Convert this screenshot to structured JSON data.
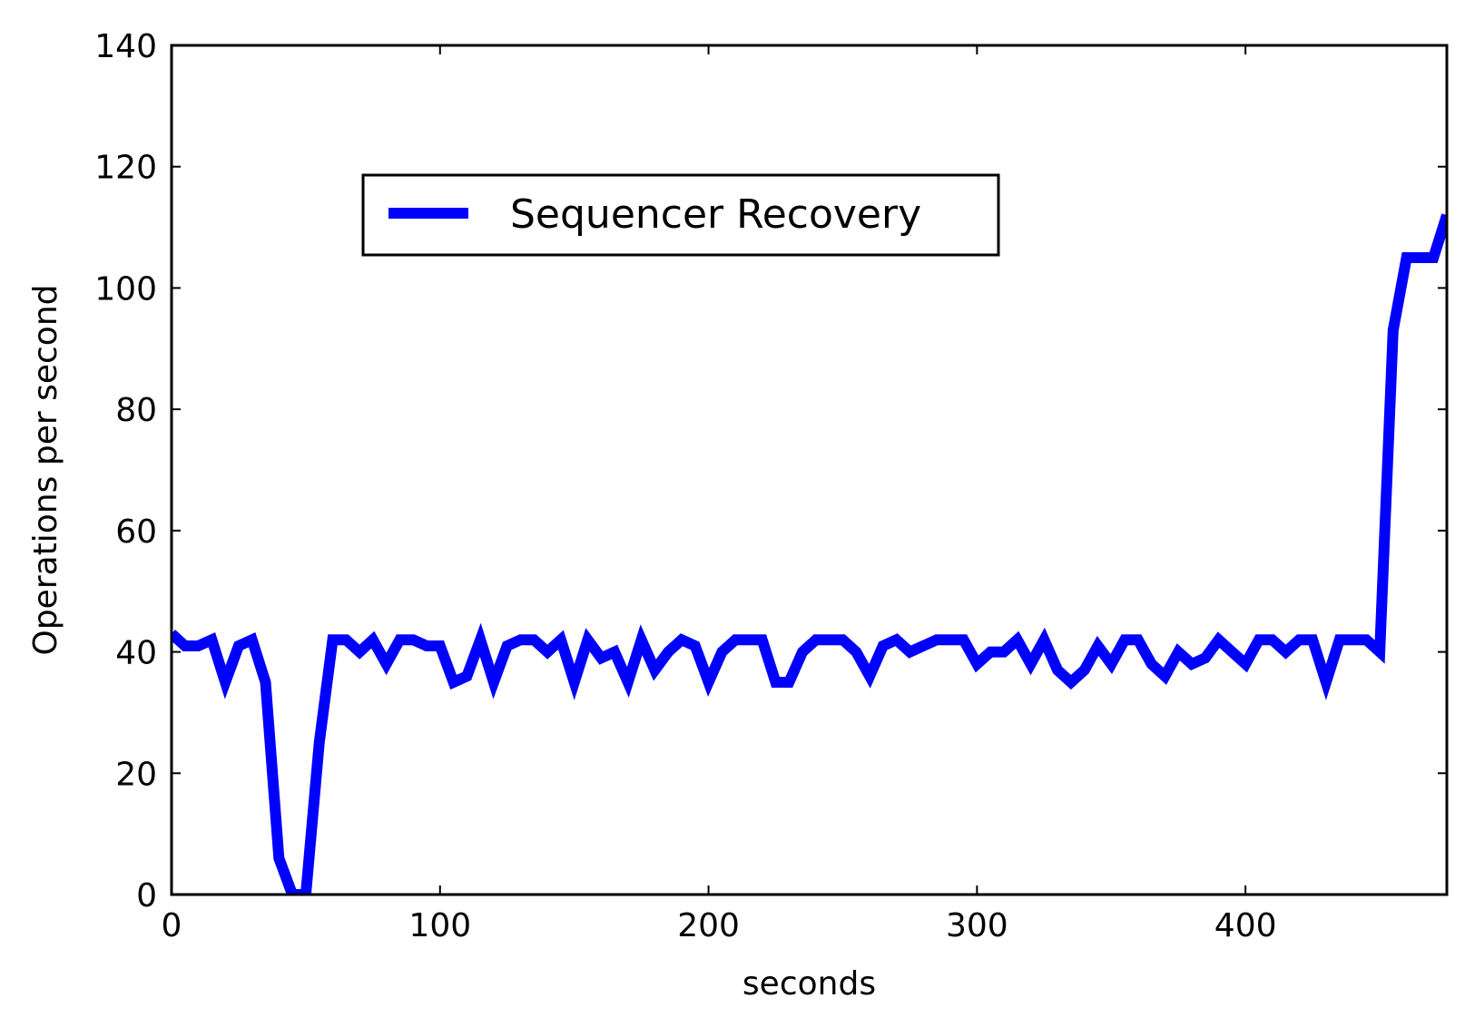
{
  "chart_data": {
    "type": "line",
    "xlabel": "seconds",
    "ylabel": "Operations per second",
    "xlim": [
      0,
      475
    ],
    "ylim": [
      0,
      140
    ],
    "xticks": [
      0,
      100,
      200,
      300,
      400
    ],
    "yticks": [
      0,
      20,
      40,
      60,
      80,
      100,
      120,
      140
    ],
    "grid": false,
    "legend_position": "upper center",
    "series": [
      {
        "name": "Sequencer Recovery",
        "color": "#0000ff",
        "x": [
          0,
          5,
          10,
          15,
          20,
          25,
          30,
          35,
          40,
          45,
          50,
          55,
          60,
          65,
          70,
          75,
          80,
          85,
          90,
          95,
          100,
          105,
          110,
          115,
          120,
          125,
          130,
          135,
          140,
          145,
          150,
          155,
          160,
          165,
          170,
          175,
          180,
          185,
          190,
          195,
          200,
          205,
          210,
          215,
          220,
          225,
          230,
          235,
          240,
          245,
          250,
          255,
          260,
          265,
          270,
          275,
          280,
          285,
          290,
          295,
          300,
          305,
          310,
          315,
          320,
          325,
          330,
          335,
          340,
          345,
          350,
          355,
          360,
          365,
          370,
          375,
          380,
          385,
          390,
          395,
          400,
          405,
          410,
          415,
          420,
          425,
          430,
          435,
          440,
          445,
          450,
          455,
          460,
          465,
          470,
          475
        ],
        "y": [
          43,
          41,
          41,
          42,
          35,
          41,
          42,
          35,
          6,
          0,
          0,
          25,
          42,
          42,
          40,
          42,
          38,
          42,
          42,
          41,
          41,
          35,
          36,
          42,
          35,
          41,
          42,
          42,
          40,
          42,
          35,
          42,
          39,
          40,
          35,
          42,
          37,
          40,
          42,
          41,
          35,
          40,
          42,
          42,
          42,
          35,
          35,
          40,
          42,
          42,
          42,
          40,
          36,
          41,
          42,
          40,
          41,
          42,
          42,
          42,
          38,
          40,
          40,
          42,
          38,
          42,
          37,
          35,
          37,
          41,
          38,
          42,
          42,
          38,
          36,
          40,
          38,
          39,
          42,
          40,
          38,
          42,
          42,
          40,
          42,
          42,
          35,
          42,
          42,
          42,
          40,
          93,
          105,
          105,
          105,
          112
        ]
      }
    ]
  }
}
